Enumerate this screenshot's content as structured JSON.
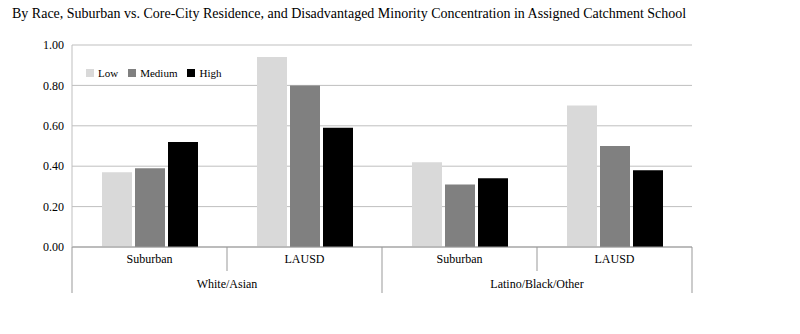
{
  "chart_data": {
    "type": "bar",
    "title": "By Race, Suburban vs. Core-City Residence, and Disadvantaged Minority Concentration in Assigned Catchment School",
    "groups": [
      {
        "name": "White/Asian",
        "categories": [
          "Suburban",
          "LAUSD"
        ]
      },
      {
        "name": "Latino/Black/Other",
        "categories": [
          "Suburban",
          "LAUSD"
        ]
      }
    ],
    "series": [
      {
        "name": "Low",
        "color": "#d9d9d9",
        "values": [
          0.37,
          0.94,
          0.42,
          0.7
        ]
      },
      {
        "name": "Medium",
        "color": "#808080",
        "values": [
          0.39,
          0.8,
          0.31,
          0.5
        ]
      },
      {
        "name": "High",
        "color": "#000000",
        "values": [
          0.52,
          0.59,
          0.34,
          0.38
        ]
      }
    ],
    "ylim": [
      0,
      1
    ],
    "yticks": [
      {
        "value": 0,
        "label": "0.00"
      },
      {
        "value": 0.2,
        "label": "0.20"
      },
      {
        "value": 0.4,
        "label": "0.40"
      },
      {
        "value": 0.6,
        "label": "0.60"
      },
      {
        "value": 0.8,
        "label": "0.80"
      },
      {
        "value": 1,
        "label": "1.00"
      }
    ],
    "grid": true,
    "legend": "top-left"
  }
}
